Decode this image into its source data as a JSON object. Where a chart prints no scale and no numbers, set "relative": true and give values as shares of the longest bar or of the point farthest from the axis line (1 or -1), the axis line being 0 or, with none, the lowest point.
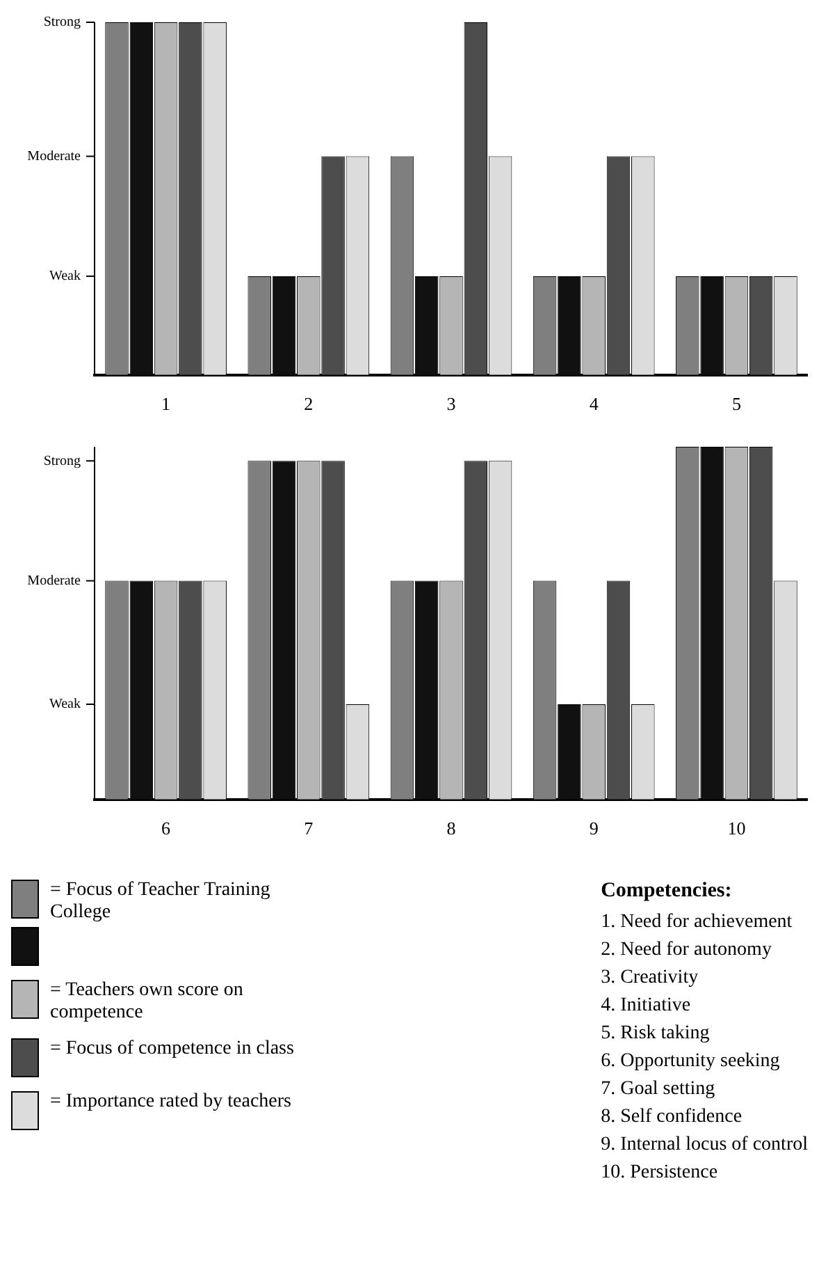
{
  "chart_data": [
    {
      "type": "bar",
      "categories": [
        "1",
        "2",
        "3",
        "4",
        "5"
      ],
      "relative": true,
      "grid": false,
      "ref_lines": [
        {
          "axis": "y",
          "value": 0.28,
          "label": "Weak"
        },
        {
          "axis": "y",
          "value": 0.62,
          "label": "Moderate"
        },
        {
          "axis": "y",
          "value": 1,
          "label": "Strong"
        }
      ],
      "series": [
        {
          "color": "#7f7f7f",
          "values": [
            1,
            0.28,
            0.62,
            0.28,
            0.28
          ]
        },
        {
          "color": "#111111",
          "values": [
            1,
            0.28,
            0.28,
            0.28,
            0.28
          ]
        },
        {
          "color": "#b5b5b5",
          "values": [
            1,
            0.28,
            0.28,
            0.28,
            0.28
          ]
        },
        {
          "color": "#4d4d4d",
          "values": [
            1,
            0.62,
            1,
            0.62,
            0.28
          ]
        },
        {
          "color": "#dcdcdc",
          "values": [
            1,
            0.62,
            0.62,
            0.62,
            0.28
          ]
        }
      ]
    },
    {
      "type": "bar",
      "categories": [
        "6",
        "7",
        "8",
        "9",
        "10"
      ],
      "relative": true,
      "grid": false,
      "legend": "bottom left",
      "ref_lines": [
        {
          "axis": "y",
          "value": 0.27,
          "label": "Weak"
        },
        {
          "axis": "y",
          "value": 0.62,
          "label": "Moderate"
        },
        {
          "axis": "y",
          "value": 0.96,
          "label": "Strong"
        }
      ],
      "series": [
        {
          "name": "= Focus of Teacher Training College",
          "color": "#7f7f7f",
          "values": [
            0.62,
            0.96,
            0.62,
            0.62,
            1
          ]
        },
        {
          "color": "#111111",
          "values": [
            0.62,
            0.96,
            0.62,
            0.27,
            1
          ]
        },
        {
          "name": "= Teachers own score on competence",
          "color": "#b5b5b5",
          "values": [
            0.62,
            0.96,
            0.62,
            0.27,
            1
          ]
        },
        {
          "name": "= Focus of competence in class",
          "color": "#4d4d4d",
          "values": [
            0.62,
            0.96,
            0.96,
            0.62,
            1
          ]
        },
        {
          "name": "= Importance rated by teachers",
          "color": "#dcdcdc",
          "values": [
            0.62,
            0.27,
            0.96,
            0.27,
            0.62
          ]
        }
      ]
    },
    {
      "type": "other",
      "title": "Competencies:",
      "annotations": [
        "1.  Need for achievement",
        "2.  Need for autonomy",
        "3.  Creativity",
        "4.  Initiative",
        "5.  Risk taking",
        "6.  Opportunity seeking",
        "7.  Goal setting",
        "8.  Self confidence",
        "9.  Internal locus of control",
        "10. Persistence"
      ]
    }
  ]
}
